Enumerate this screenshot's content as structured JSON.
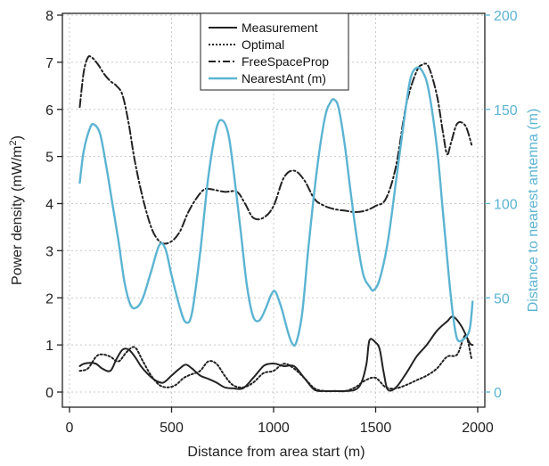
{
  "chart_data": {
    "type": "line",
    "xlabel": "Distance from area start (m)",
    "ylabel_left": "Power density (mW/m²)",
    "ylabel_left_main": "Power density (mW/m",
    "ylabel_left_sup": "2",
    "ylabel_left_end": ")",
    "ylabel_right": "Distance to nearest antenna (m)",
    "xlim": [
      0,
      2000
    ],
    "ylim_left": [
      0,
      8
    ],
    "ylim_right": [
      0,
      200
    ],
    "x_ticks": [
      "0",
      "500",
      "1000",
      "1500",
      "2000"
    ],
    "y_left_ticks": [
      "0",
      "1",
      "2",
      "3",
      "4",
      "5",
      "6",
      "7",
      "8"
    ],
    "y_right_ticks": [
      "0",
      "50",
      "100",
      "150",
      "200"
    ],
    "grid": true,
    "legend_position": "top-center",
    "series": [
      {
        "name": "Measurement",
        "axis": "left",
        "style": "solid",
        "color": "#222222",
        "x": [
          50,
          70,
          100,
          130,
          160,
          200,
          230,
          260,
          290,
          320,
          350,
          380,
          420,
          460,
          500,
          540,
          570,
          600,
          640,
          680,
          720,
          760,
          800,
          850,
          900,
          950,
          980,
          1010,
          1050,
          1100,
          1150,
          1200,
          1250,
          1300,
          1350,
          1400,
          1430,
          1455,
          1470,
          1500,
          1520,
          1540,
          1560,
          1600,
          1650,
          1700,
          1750,
          1800,
          1850,
          1880,
          1920,
          1960,
          1975
        ],
        "y": [
          0.55,
          0.6,
          0.62,
          0.6,
          0.5,
          0.45,
          0.7,
          0.9,
          0.9,
          0.75,
          0.55,
          0.4,
          0.25,
          0.2,
          0.35,
          0.5,
          0.58,
          0.5,
          0.35,
          0.28,
          0.2,
          0.1,
          0.08,
          0.08,
          0.3,
          0.55,
          0.6,
          0.6,
          0.55,
          0.55,
          0.3,
          0.05,
          0.02,
          0.02,
          0.02,
          0.05,
          0.2,
          0.6,
          1.1,
          1.05,
          0.9,
          0.4,
          0.05,
          0.1,
          0.4,
          0.75,
          1.0,
          1.3,
          1.5,
          1.6,
          1.4,
          1.05,
          1.0
        ]
      },
      {
        "name": "Optimal",
        "axis": "left",
        "style": "dotted",
        "color": "#222222",
        "x": [
          50,
          90,
          130,
          160,
          200,
          240,
          280,
          320,
          360,
          400,
          440,
          480,
          520,
          560,
          600,
          640,
          680,
          720,
          760,
          800,
          850,
          900,
          950,
          1000,
          1050,
          1100,
          1150,
          1200,
          1250,
          1300,
          1350,
          1400,
          1450,
          1500,
          1550,
          1600,
          1650,
          1700,
          1750,
          1800,
          1850,
          1900,
          1940,
          1970
        ],
        "y": [
          0.45,
          0.5,
          0.75,
          0.8,
          0.75,
          0.65,
          0.85,
          0.95,
          0.65,
          0.35,
          0.15,
          0.1,
          0.15,
          0.3,
          0.38,
          0.45,
          0.65,
          0.6,
          0.35,
          0.15,
          0.1,
          0.2,
          0.4,
          0.45,
          0.6,
          0.5,
          0.3,
          0.08,
          0.02,
          0.02,
          0.02,
          0.1,
          0.25,
          0.3,
          0.1,
          0.08,
          0.15,
          0.25,
          0.35,
          0.5,
          0.75,
          0.8,
          1.2,
          0.7
        ]
      },
      {
        "name": "FreeSpaceProp",
        "axis": "left",
        "style": "dashdot",
        "color": "#222222",
        "x": [
          50,
          70,
          90,
          110,
          140,
          170,
          200,
          230,
          260,
          290,
          320,
          360,
          400,
          430,
          460,
          500,
          540,
          580,
          620,
          660,
          700,
          760,
          820,
          860,
          900,
          950,
          1000,
          1050,
          1100,
          1150,
          1200,
          1250,
          1300,
          1350,
          1400,
          1450,
          1500,
          1550,
          1600,
          1650,
          1700,
          1730,
          1760,
          1800,
          1830,
          1850,
          1870,
          1900,
          1940,
          1970
        ],
        "y": [
          6.05,
          6.8,
          7.1,
          7.1,
          6.95,
          6.75,
          6.6,
          6.5,
          6.3,
          5.7,
          4.9,
          4.1,
          3.5,
          3.25,
          3.15,
          3.2,
          3.4,
          3.8,
          4.1,
          4.3,
          4.3,
          4.25,
          4.25,
          4.0,
          3.7,
          3.7,
          3.95,
          4.55,
          4.7,
          4.5,
          4.1,
          3.95,
          3.88,
          3.85,
          3.82,
          3.85,
          3.95,
          4.1,
          4.8,
          6.1,
          6.8,
          6.95,
          6.9,
          6.3,
          5.5,
          5.05,
          5.3,
          5.7,
          5.65,
          5.25
        ]
      },
      {
        "name": "NearestAnt (m)",
        "axis": "right",
        "style": "solid",
        "color": "#5bb4d2",
        "x": [
          50,
          70,
          100,
          120,
          150,
          180,
          210,
          240,
          270,
          300,
          330,
          360,
          400,
          440,
          470,
          500,
          540,
          570,
          600,
          640,
          680,
          720,
          750,
          780,
          810,
          840,
          870,
          900,
          930,
          960,
          990,
          1010,
          1040,
          1070,
          1090,
          1110,
          1140,
          1170,
          1210,
          1250,
          1280,
          1300,
          1320,
          1350,
          1380,
          1410,
          1440,
          1470,
          1490,
          1520,
          1560,
          1600,
          1640,
          1670,
          1700,
          1730,
          1760,
          1800,
          1830,
          1860,
          1880,
          1900,
          1930,
          1960,
          1975
        ],
        "y": [
          111,
          128,
          140,
          142,
          137,
          120,
          100,
          80,
          58,
          46,
          45,
          50,
          64,
          78,
          76,
          62,
          45,
          37,
          42,
          74,
          114,
          140,
          144,
          136,
          112,
          84,
          56,
          40,
          38,
          44,
          52,
          53,
          44,
          32,
          26,
          26,
          42,
          76,
          116,
          145,
          154,
          155,
          150,
          130,
          104,
          80,
          62,
          56,
          54,
          60,
          80,
          112,
          145,
          166,
          172,
          170,
          160,
          130,
          95,
          60,
          40,
          28,
          28,
          33,
          48
        ]
      }
    ]
  }
}
